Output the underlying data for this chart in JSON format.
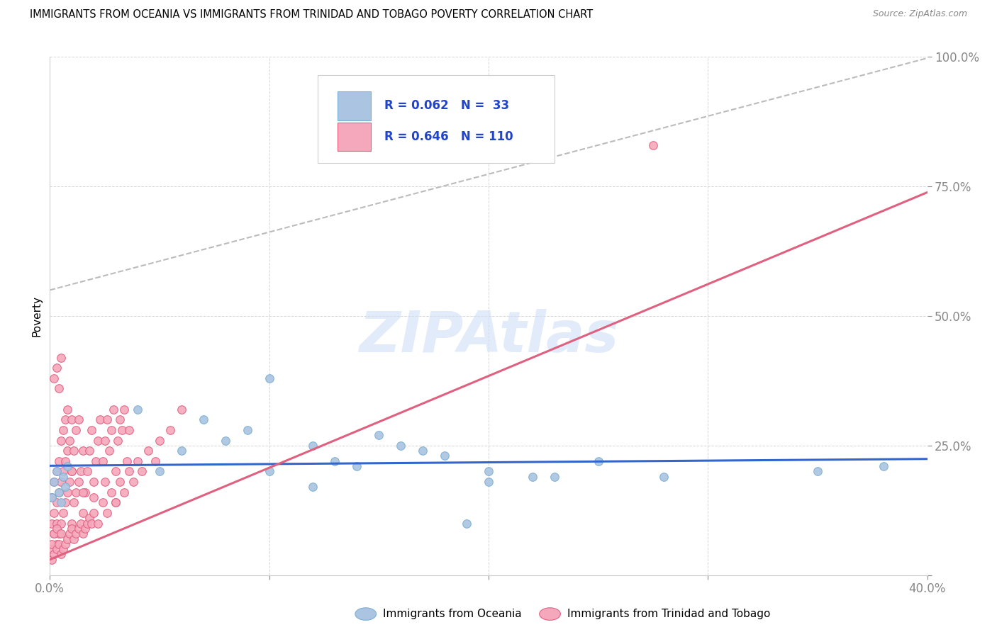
{
  "title": "IMMIGRANTS FROM OCEANIA VS IMMIGRANTS FROM TRINIDAD AND TOBAGO POVERTY CORRELATION CHART",
  "source": "Source: ZipAtlas.com",
  "ylabel": "Poverty",
  "xlim": [
    0.0,
    0.4
  ],
  "ylim": [
    0.0,
    1.0
  ],
  "oceania_color": "#aac4e2",
  "tt_color": "#f5a8bc",
  "oceania_edge": "#7aafd4",
  "tt_edge": "#e06080",
  "oceania_R": 0.062,
  "oceania_N": 33,
  "tt_R": 0.646,
  "tt_N": 110,
  "watermark": "ZIPAtlas",
  "watermark_color": "#d0dff5",
  "legend_text_color": "#2244cc",
  "trend_blue_color": "#3366cc",
  "trend_pink_color": "#e06080",
  "trend_dashed_color": "#bbbbbb",
  "oceania_x": [
    0.001,
    0.002,
    0.003,
    0.004,
    0.005,
    0.006,
    0.007,
    0.008,
    0.04,
    0.05,
    0.06,
    0.07,
    0.08,
    0.09,
    0.1,
    0.12,
    0.13,
    0.15,
    0.16,
    0.18,
    0.2,
    0.22,
    0.25,
    0.28,
    0.1,
    0.14,
    0.17,
    0.2,
    0.23,
    0.35,
    0.38,
    0.12,
    0.19
  ],
  "oceania_y": [
    0.15,
    0.18,
    0.2,
    0.16,
    0.14,
    0.19,
    0.17,
    0.21,
    0.32,
    0.2,
    0.24,
    0.3,
    0.26,
    0.28,
    0.38,
    0.25,
    0.22,
    0.27,
    0.25,
    0.23,
    0.2,
    0.19,
    0.22,
    0.19,
    0.2,
    0.21,
    0.24,
    0.18,
    0.19,
    0.2,
    0.21,
    0.17,
    0.1
  ],
  "tt_x": [
    0.001,
    0.001,
    0.001,
    0.002,
    0.002,
    0.002,
    0.003,
    0.003,
    0.003,
    0.003,
    0.004,
    0.004,
    0.004,
    0.005,
    0.005,
    0.005,
    0.006,
    0.006,
    0.006,
    0.007,
    0.007,
    0.007,
    0.008,
    0.008,
    0.008,
    0.009,
    0.009,
    0.01,
    0.01,
    0.01,
    0.011,
    0.011,
    0.012,
    0.012,
    0.013,
    0.013,
    0.014,
    0.015,
    0.015,
    0.016,
    0.017,
    0.018,
    0.019,
    0.02,
    0.021,
    0.022,
    0.023,
    0.024,
    0.025,
    0.026,
    0.027,
    0.028,
    0.029,
    0.03,
    0.031,
    0.032,
    0.033,
    0.034,
    0.035,
    0.036,
    0.001,
    0.001,
    0.002,
    0.002,
    0.003,
    0.003,
    0.004,
    0.005,
    0.005,
    0.006,
    0.007,
    0.008,
    0.009,
    0.01,
    0.011,
    0.012,
    0.013,
    0.014,
    0.015,
    0.016,
    0.017,
    0.018,
    0.019,
    0.02,
    0.022,
    0.024,
    0.026,
    0.028,
    0.03,
    0.032,
    0.034,
    0.036,
    0.038,
    0.04,
    0.042,
    0.045,
    0.048,
    0.05,
    0.055,
    0.06,
    0.002,
    0.003,
    0.004,
    0.005,
    0.01,
    0.015,
    0.02,
    0.025,
    0.03,
    0.275
  ],
  "tt_y": [
    0.05,
    0.1,
    0.15,
    0.08,
    0.12,
    0.18,
    0.06,
    0.1,
    0.14,
    0.2,
    0.08,
    0.16,
    0.22,
    0.1,
    0.18,
    0.26,
    0.12,
    0.2,
    0.28,
    0.14,
    0.22,
    0.3,
    0.16,
    0.24,
    0.32,
    0.18,
    0.26,
    0.1,
    0.2,
    0.3,
    0.14,
    0.24,
    0.16,
    0.28,
    0.18,
    0.3,
    0.2,
    0.12,
    0.24,
    0.16,
    0.2,
    0.24,
    0.28,
    0.18,
    0.22,
    0.26,
    0.3,
    0.22,
    0.26,
    0.3,
    0.24,
    0.28,
    0.32,
    0.2,
    0.26,
    0.3,
    0.28,
    0.32,
    0.22,
    0.28,
    0.03,
    0.06,
    0.04,
    0.08,
    0.05,
    0.09,
    0.06,
    0.04,
    0.08,
    0.05,
    0.06,
    0.07,
    0.08,
    0.09,
    0.07,
    0.08,
    0.09,
    0.1,
    0.08,
    0.09,
    0.1,
    0.11,
    0.1,
    0.12,
    0.1,
    0.14,
    0.12,
    0.16,
    0.14,
    0.18,
    0.16,
    0.2,
    0.18,
    0.22,
    0.2,
    0.24,
    0.22,
    0.26,
    0.28,
    0.32,
    0.38,
    0.4,
    0.36,
    0.42,
    0.2,
    0.16,
    0.15,
    0.18,
    0.14,
    0.83
  ]
}
